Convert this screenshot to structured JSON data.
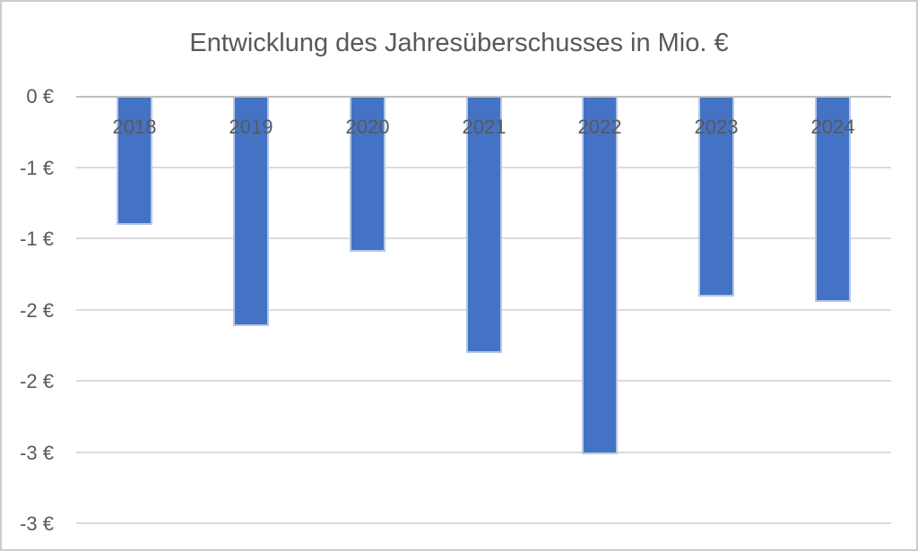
{
  "chart_data": {
    "type": "bar",
    "title": "Entwicklung des Jahresüberschusses in Mio. €",
    "categories": [
      "2018",
      "2019",
      "2020",
      "2021",
      "2022",
      "2023",
      "2024"
    ],
    "values": [
      -0.9,
      -1.61,
      -1.09,
      -1.8,
      -2.51,
      -1.4,
      -1.44
    ],
    "xlabel": "",
    "ylabel": "",
    "ylim": [
      -3,
      0
    ],
    "y_tick_step": 0.5,
    "y_tick_labels": [
      "0 €",
      "-1 €",
      "-1 €",
      "-2 €",
      "-2 €",
      "-3 €",
      "-3 €"
    ],
    "grid": true,
    "legend": false,
    "colors": {
      "bar_fill": "#4472c4",
      "bar_border": "#b4c7e7",
      "gridline": "#dbdbdb",
      "zero_axis_line": "#bfbfbf",
      "text": "#595959",
      "background": "#ffffff",
      "frame_border": "#cbcccd"
    }
  }
}
